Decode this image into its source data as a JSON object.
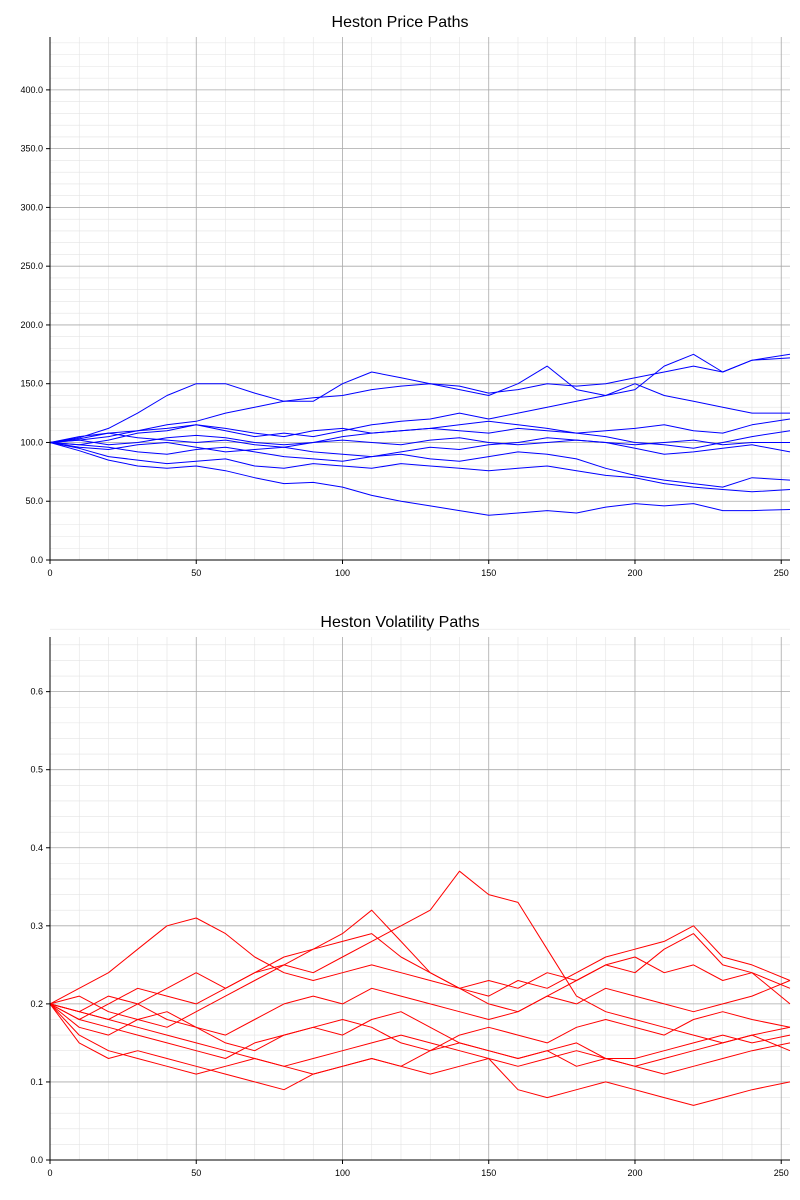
{
  "colors": {
    "price": "#0000ff",
    "volatility": "#ff0000",
    "grid_major": "#a9a9a9",
    "grid_minor": "#e3e3e3"
  },
  "chart_data": [
    {
      "type": "line",
      "title": "Heston Price Paths",
      "xlabel": "",
      "ylabel": "",
      "xlim": [
        0,
        253
      ],
      "ylim": [
        0,
        445
      ],
      "x_ticks": [
        "0",
        "50",
        "100",
        "150",
        "200",
        "250"
      ],
      "y_ticks": [
        "0.0",
        "50.0",
        "100.0",
        "150.0",
        "200.0",
        "250.0",
        "300.0",
        "350.0",
        "400.0"
      ],
      "grid": true,
      "legend": "none",
      "color": "#0000ff",
      "x": [
        0,
        10,
        20,
        30,
        40,
        50,
        60,
        70,
        80,
        90,
        100,
        110,
        120,
        130,
        140,
        150,
        160,
        170,
        180,
        190,
        200,
        210,
        220,
        230,
        240,
        253
      ],
      "series": [
        {
          "values": [
            100,
            104,
            112,
            125,
            140,
            150,
            150,
            142,
            135,
            138,
            140,
            145,
            148,
            150,
            148,
            142,
            145,
            150,
            148,
            150,
            155,
            160,
            165,
            160,
            170,
            172
          ]
        },
        {
          "values": [
            100,
            102,
            105,
            110,
            115,
            118,
            125,
            130,
            135,
            135,
            150,
            160,
            155,
            150,
            145,
            140,
            150,
            165,
            145,
            140,
            145,
            165,
            175,
            160,
            170,
            175
          ]
        },
        {
          "values": [
            100,
            103,
            108,
            110,
            112,
            115,
            110,
            105,
            108,
            105,
            110,
            115,
            118,
            120,
            125,
            120,
            125,
            130,
            135,
            140,
            150,
            140,
            135,
            130,
            125,
            125
          ]
        },
        {
          "values": [
            100,
            98,
            102,
            108,
            110,
            115,
            112,
            108,
            105,
            110,
            112,
            108,
            110,
            112,
            115,
            118,
            115,
            112,
            108,
            110,
            112,
            115,
            110,
            108,
            115,
            120
          ]
        },
        {
          "values": [
            100,
            105,
            108,
            104,
            102,
            100,
            102,
            98,
            96,
            100,
            105,
            108,
            110,
            112,
            110,
            108,
            112,
            110,
            108,
            105,
            100,
            98,
            95,
            100,
            105,
            110
          ]
        },
        {
          "values": [
            100,
            102,
            98,
            100,
            104,
            106,
            104,
            100,
            98,
            100,
            102,
            100,
            98,
            102,
            104,
            100,
            98,
            100,
            102,
            100,
            98,
            100,
            102,
            98,
            100,
            100
          ]
        },
        {
          "values": [
            100,
            96,
            94,
            98,
            100,
            96,
            92,
            94,
            96,
            92,
            90,
            88,
            92,
            96,
            94,
            98,
            100,
            104,
            102,
            100,
            95,
            90,
            92,
            95,
            98,
            92
          ]
        },
        {
          "values": [
            100,
            98,
            96,
            92,
            90,
            94,
            96,
            92,
            88,
            86,
            84,
            88,
            90,
            86,
            84,
            88,
            92,
            90,
            86,
            78,
            72,
            68,
            65,
            62,
            70,
            68
          ]
        },
        {
          "values": [
            100,
            95,
            88,
            85,
            82,
            84,
            86,
            80,
            78,
            82,
            80,
            78,
            82,
            80,
            78,
            76,
            78,
            80,
            76,
            72,
            70,
            65,
            62,
            60,
            58,
            60
          ]
        },
        {
          "values": [
            100,
            93,
            85,
            80,
            78,
            80,
            76,
            70,
            65,
            66,
            62,
            55,
            50,
            46,
            42,
            38,
            40,
            42,
            40,
            45,
            48,
            46,
            48,
            42,
            42,
            43
          ]
        }
      ]
    },
    {
      "type": "line",
      "title": "Heston Volatility Paths",
      "xlabel": "",
      "ylabel": "",
      "xlim": [
        0,
        253
      ],
      "ylim": [
        0,
        0.67
      ],
      "x_ticks": [
        "0",
        "50",
        "100",
        "150",
        "200",
        "250"
      ],
      "y_ticks": [
        "0.0",
        "0.1",
        "0.2",
        "0.3",
        "0.4",
        "0.5",
        "0.6"
      ],
      "grid": true,
      "legend": "none",
      "color": "#ff0000",
      "x": [
        0,
        10,
        20,
        30,
        40,
        50,
        60,
        70,
        80,
        90,
        100,
        110,
        120,
        130,
        140,
        150,
        160,
        170,
        180,
        190,
        200,
        210,
        220,
        230,
        240,
        253
      ],
      "series": [
        {
          "values": [
            0.2,
            0.21,
            0.19,
            0.18,
            0.17,
            0.19,
            0.21,
            0.23,
            0.25,
            0.24,
            0.26,
            0.28,
            0.3,
            0.32,
            0.37,
            0.34,
            0.33,
            0.27,
            0.21,
            0.19,
            0.18,
            0.17,
            0.16,
            0.15,
            0.16,
            0.14
          ]
        },
        {
          "values": [
            0.2,
            0.22,
            0.24,
            0.27,
            0.3,
            0.31,
            0.29,
            0.26,
            0.24,
            0.23,
            0.24,
            0.25,
            0.24,
            0.23,
            0.22,
            0.23,
            0.22,
            0.24,
            0.23,
            0.25,
            0.26,
            0.24,
            0.25,
            0.23,
            0.24,
            0.2
          ]
        },
        {
          "values": [
            0.2,
            0.19,
            0.18,
            0.2,
            0.22,
            0.24,
            0.22,
            0.24,
            0.26,
            0.27,
            0.28,
            0.29,
            0.26,
            0.24,
            0.22,
            0.21,
            0.23,
            0.22,
            0.24,
            0.26,
            0.27,
            0.28,
            0.3,
            0.26,
            0.25,
            0.23
          ]
        },
        {
          "values": [
            0.2,
            0.18,
            0.2,
            0.22,
            0.21,
            0.2,
            0.22,
            0.24,
            0.25,
            0.27,
            0.29,
            0.32,
            0.28,
            0.24,
            0.22,
            0.2,
            0.19,
            0.21,
            0.23,
            0.25,
            0.24,
            0.27,
            0.29,
            0.25,
            0.24,
            0.22
          ]
        },
        {
          "values": [
            0.2,
            0.19,
            0.21,
            0.2,
            0.18,
            0.17,
            0.16,
            0.18,
            0.2,
            0.21,
            0.2,
            0.22,
            0.21,
            0.2,
            0.19,
            0.18,
            0.19,
            0.21,
            0.2,
            0.22,
            0.21,
            0.2,
            0.19,
            0.2,
            0.21,
            0.23
          ]
        },
        {
          "values": [
            0.2,
            0.18,
            0.17,
            0.16,
            0.15,
            0.14,
            0.13,
            0.15,
            0.16,
            0.17,
            0.18,
            0.17,
            0.15,
            0.14,
            0.16,
            0.17,
            0.16,
            0.15,
            0.17,
            0.18,
            0.17,
            0.16,
            0.18,
            0.19,
            0.18,
            0.17
          ]
        },
        {
          "values": [
            0.2,
            0.17,
            0.16,
            0.18,
            0.19,
            0.17,
            0.15,
            0.14,
            0.16,
            0.17,
            0.16,
            0.18,
            0.19,
            0.17,
            0.15,
            0.14,
            0.13,
            0.14,
            0.15,
            0.13,
            0.12,
            0.13,
            0.14,
            0.15,
            0.16,
            0.17
          ]
        },
        {
          "values": [
            0.2,
            0.16,
            0.14,
            0.13,
            0.12,
            0.11,
            0.12,
            0.13,
            0.12,
            0.13,
            0.14,
            0.15,
            0.16,
            0.15,
            0.14,
            0.13,
            0.12,
            0.13,
            0.14,
            0.13,
            0.13,
            0.14,
            0.15,
            0.16,
            0.15,
            0.16
          ]
        },
        {
          "values": [
            0.2,
            0.15,
            0.13,
            0.14,
            0.13,
            0.12,
            0.11,
            0.1,
            0.09,
            0.11,
            0.12,
            0.13,
            0.12,
            0.14,
            0.15,
            0.14,
            0.13,
            0.14,
            0.12,
            0.13,
            0.12,
            0.11,
            0.12,
            0.13,
            0.14,
            0.15
          ]
        },
        {
          "values": [
            0.2,
            0.19,
            0.18,
            0.17,
            0.16,
            0.15,
            0.14,
            0.13,
            0.12,
            0.11,
            0.12,
            0.13,
            0.12,
            0.11,
            0.12,
            0.13,
            0.09,
            0.08,
            0.09,
            0.1,
            0.09,
            0.08,
            0.07,
            0.08,
            0.09,
            0.1
          ]
        }
      ]
    }
  ]
}
